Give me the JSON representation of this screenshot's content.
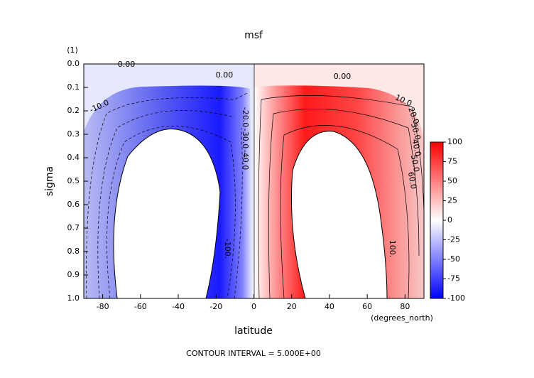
{
  "chart_data": {
    "type": "contour",
    "title": "msf",
    "ylabel": "sigma",
    "yunits": "(1)",
    "xlabel": "latitude",
    "xunits": "(degrees_north)",
    "footer": "CONTOUR INTERVAL = 5.000E+00",
    "xlim": [
      -90,
      90
    ],
    "xticks": [
      -80,
      -60,
      -40,
      -20,
      0,
      20,
      40,
      60,
      80
    ],
    "ylim": [
      1,
      0
    ],
    "yticks": [
      {
        "value": 0,
        "label": "0.0"
      },
      0.1,
      0.2,
      0.3,
      0.4,
      0.5,
      0.6,
      0.7,
      0.8,
      0.9,
      {
        "value": 1,
        "label": "1.0"
      }
    ],
    "colorbar": {
      "ticks": [
        100,
        75,
        50,
        25,
        0,
        -25,
        -50,
        -75,
        -100
      ],
      "low_color": "#0000ff",
      "mid_color": "#ffffff",
      "high_color": "#ff0000"
    },
    "contour_labels": [
      "0.00",
      "0.00",
      "0.00",
      "-10.0",
      "10.0",
      "20.0",
      "30.0",
      "40.0",
      "50.0",
      "60.0",
      "-20.0",
      "-30.0",
      "-40.0",
      "-100.",
      "100."
    ]
  }
}
